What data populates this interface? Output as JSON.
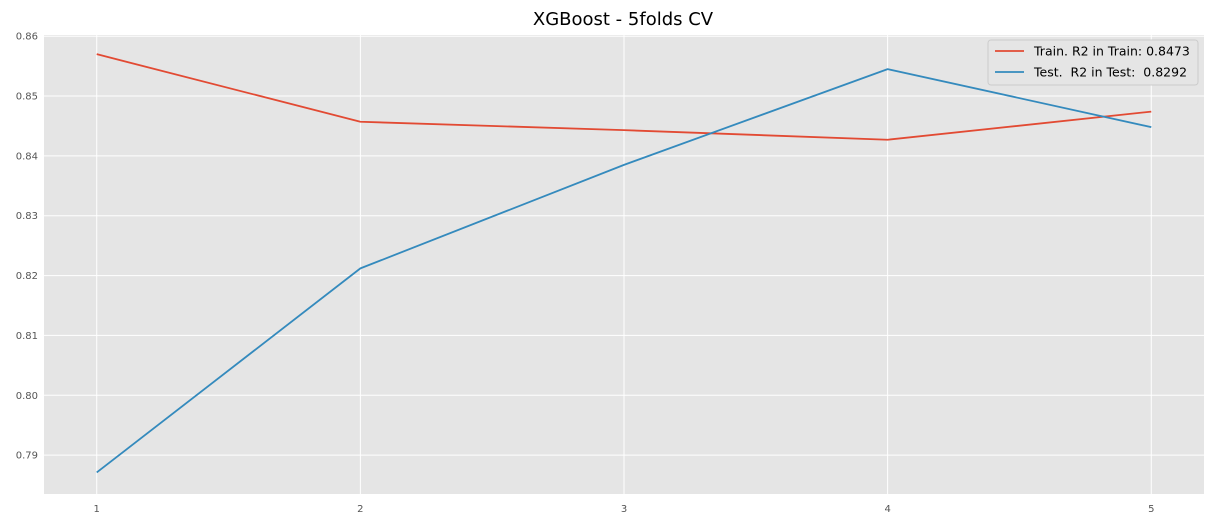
{
  "chart_data": {
    "type": "line",
    "title": "XGBoost - 5folds CV",
    "xlabel": "",
    "ylabel": "",
    "x": [
      1,
      2,
      3,
      4,
      5
    ],
    "xlim": [
      0.8,
      5.2
    ],
    "ylim": [
      0.7835,
      0.8602
    ],
    "x_ticks": [
      "1",
      "2",
      "3",
      "4",
      "5"
    ],
    "y_ticks": [
      "0.79",
      "0.80",
      "0.81",
      "0.82",
      "0.83",
      "0.84",
      "0.85",
      "0.86"
    ],
    "grid": true,
    "legend_position": "top-right",
    "series": [
      {
        "name": "Train. R2 in Train: 0.8473",
        "color": "#E24A33",
        "values": [
          0.857,
          0.8457,
          0.8443,
          0.8427,
          0.8474
        ]
      },
      {
        "name": "Test.  R2 in Test:  0.8292",
        "color": "#348ABD",
        "values": [
          0.7871,
          0.8212,
          0.8385,
          0.8545,
          0.8448
        ]
      }
    ],
    "colors": {
      "plot_background": "#E5E5E5",
      "grid": "#FFFFFF",
      "legend_background": "#E5E5E5",
      "legend_border": "#CCCCCC"
    }
  }
}
